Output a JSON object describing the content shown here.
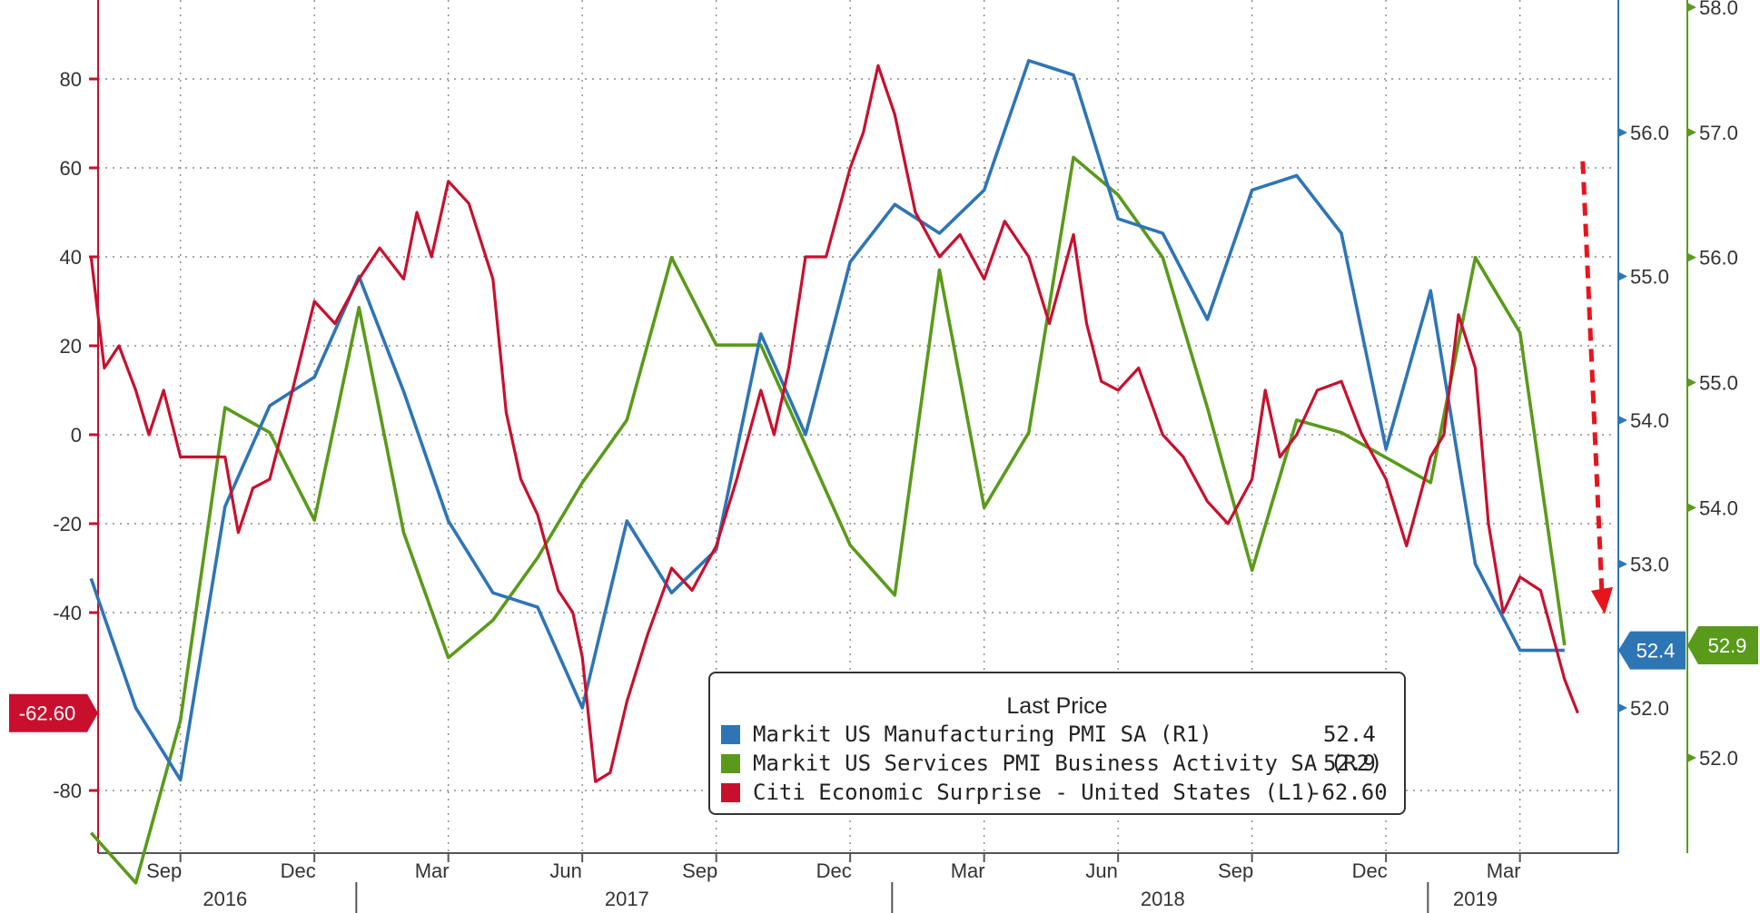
{
  "chart_data": {
    "type": "line",
    "title": "",
    "axes": {
      "x": {
        "month_labels": [
          "Sep",
          "Dec",
          "Mar",
          "Jun",
          "Sep",
          "Dec",
          "Mar",
          "Jun",
          "Sep",
          "Dec",
          "Mar"
        ],
        "month_dates": [
          "2016-09",
          "2016-12",
          "2017-03",
          "2017-06",
          "2017-09",
          "2017-12",
          "2018-03",
          "2018-06",
          "2018-09",
          "2018-12",
          "2019-03"
        ],
        "year_labels": [
          "2016",
          "2017",
          "2018",
          "2019"
        ],
        "year_dates": [
          "2016-10",
          "2017-07",
          "2018-07",
          "2019-02"
        ],
        "range": [
          "2016-07",
          "2019-04"
        ]
      },
      "left_L1": {
        "ticks": [
          "80",
          "60",
          "40",
          "20",
          "0",
          "-20",
          "-40",
          "-80"
        ],
        "tick_values": [
          80,
          60,
          40,
          20,
          0,
          -20,
          -40,
          -80
        ],
        "range": [
          -90,
          95
        ]
      },
      "right_R1": {
        "ticks": [
          "56.0",
          "55.0",
          "54.0",
          "53.0",
          "52.0"
        ],
        "tick_values": [
          56,
          55,
          54,
          53,
          52
        ],
        "range": [
          51.0,
          57.0
        ]
      },
      "right_R2": {
        "ticks": [
          "58.0",
          "57.0",
          "56.0",
          "55.0",
          "54.0",
          "52.0"
        ],
        "tick_values": [
          58,
          57,
          56,
          55,
          54,
          52
        ],
        "range": [
          51.2,
          58.0
        ]
      }
    },
    "grid": true,
    "series": [
      {
        "name": "Markit US Manufacturing PMI SA (R1)",
        "axis": "R1",
        "color": "#2e75b6",
        "last": "52.4",
        "points": [
          [
            "2016-07",
            52.9
          ],
          [
            "2016-08",
            52.0
          ],
          [
            "2016-09",
            51.5
          ],
          [
            "2016-10",
            53.4
          ],
          [
            "2016-11",
            54.1
          ],
          [
            "2016-12",
            54.3
          ],
          [
            "2017-01",
            55.0
          ],
          [
            "2017-02",
            54.2
          ],
          [
            "2017-03",
            53.3
          ],
          [
            "2017-04",
            52.8
          ],
          [
            "2017-05",
            52.7
          ],
          [
            "2017-06",
            52.0
          ],
          [
            "2017-07",
            53.3
          ],
          [
            "2017-08",
            52.8
          ],
          [
            "2017-09",
            53.1
          ],
          [
            "2017-10",
            54.6
          ],
          [
            "2017-11",
            53.9
          ],
          [
            "2017-12",
            55.1
          ],
          [
            "2018-01",
            55.5
          ],
          [
            "2018-02",
            55.3
          ],
          [
            "2018-03",
            55.6
          ],
          [
            "2018-04",
            56.5
          ],
          [
            "2018-05",
            56.4
          ],
          [
            "2018-06",
            55.4
          ],
          [
            "2018-07",
            55.3
          ],
          [
            "2018-08",
            54.7
          ],
          [
            "2018-09",
            55.6
          ],
          [
            "2018-10",
            55.7
          ],
          [
            "2018-11",
            55.3
          ],
          [
            "2018-12",
            53.8
          ],
          [
            "2019-01",
            54.9
          ],
          [
            "2019-02",
            53.0
          ],
          [
            "2019-03",
            52.4
          ],
          [
            "2019-04",
            52.4
          ]
        ]
      },
      {
        "name": "Markit US Services PMI Business Activity SA (R2)",
        "axis": "R2",
        "color": "#5a9a1a",
        "last": "52.9",
        "points": [
          [
            "2016-07",
            51.4
          ],
          [
            "2016-08",
            51.0
          ],
          [
            "2016-09",
            52.3
          ],
          [
            "2016-10",
            54.8
          ],
          [
            "2016-11",
            54.6
          ],
          [
            "2016-12",
            53.9
          ],
          [
            "2017-01",
            55.6
          ],
          [
            "2017-02",
            53.8
          ],
          [
            "2017-03",
            52.8
          ],
          [
            "2017-04",
            53.1
          ],
          [
            "2017-05",
            53.6
          ],
          [
            "2017-06",
            54.2
          ],
          [
            "2017-07",
            54.7
          ],
          [
            "2017-08",
            56.0
          ],
          [
            "2017-09",
            55.3
          ],
          [
            "2017-10",
            55.3
          ],
          [
            "2017-11",
            54.5
          ],
          [
            "2017-12",
            53.7
          ],
          [
            "2018-01",
            53.3
          ],
          [
            "2018-02",
            55.9
          ],
          [
            "2018-03",
            54.0
          ],
          [
            "2018-04",
            54.6
          ],
          [
            "2018-05",
            56.8
          ],
          [
            "2018-06",
            56.5
          ],
          [
            "2018-07",
            56.0
          ],
          [
            "2018-08",
            54.8
          ],
          [
            "2018-09",
            53.5
          ],
          [
            "2018-10",
            54.7
          ],
          [
            "2018-11",
            54.6
          ],
          [
            "2018-12",
            54.4
          ],
          [
            "2019-01",
            54.2
          ],
          [
            "2019-02",
            56.0
          ],
          [
            "2019-03",
            55.4
          ],
          [
            "2019-04",
            52.9
          ]
        ]
      },
      {
        "name": "Citi Economic Surprise - United States (L1)",
        "axis": "L1",
        "color": "#c8102e",
        "last": "-62.60",
        "points": [
          [
            "2016-07-01",
            40
          ],
          [
            "2016-07-10",
            15
          ],
          [
            "2016-07-20",
            20
          ],
          [
            "2016-08-01",
            10
          ],
          [
            "2016-08-10",
            0
          ],
          [
            "2016-08-20",
            10
          ],
          [
            "2016-09-01",
            -5
          ],
          [
            "2016-09-15",
            -5
          ],
          [
            "2016-10-01",
            -5
          ],
          [
            "2016-10-10",
            -22
          ],
          [
            "2016-10-20",
            -12
          ],
          [
            "2016-11-01",
            -10
          ],
          [
            "2016-11-15",
            8
          ],
          [
            "2016-12-01",
            30
          ],
          [
            "2016-12-15",
            25
          ],
          [
            "2017-01-01",
            35
          ],
          [
            "2017-01-15",
            42
          ],
          [
            "2017-02-01",
            35
          ],
          [
            "2017-02-10",
            50
          ],
          [
            "2017-02-20",
            40
          ],
          [
            "2017-03-01",
            57
          ],
          [
            "2017-03-15",
            52
          ],
          [
            "2017-04-01",
            35
          ],
          [
            "2017-04-10",
            5
          ],
          [
            "2017-04-20",
            -10
          ],
          [
            "2017-05-01",
            -18
          ],
          [
            "2017-05-15",
            -35
          ],
          [
            "2017-05-25",
            -40
          ],
          [
            "2017-06-01",
            -50
          ],
          [
            "2017-06-10",
            -78
          ],
          [
            "2017-06-20",
            -76
          ],
          [
            "2017-07-01",
            -60
          ],
          [
            "2017-07-15",
            -45
          ],
          [
            "2017-08-01",
            -30
          ],
          [
            "2017-08-15",
            -35
          ],
          [
            "2017-09-01",
            -25
          ],
          [
            "2017-09-15",
            -10
          ],
          [
            "2017-10-01",
            10
          ],
          [
            "2017-10-10",
            0
          ],
          [
            "2017-10-20",
            15
          ],
          [
            "2017-11-01",
            40
          ],
          [
            "2017-11-15",
            40
          ],
          [
            "2017-12-01",
            60
          ],
          [
            "2017-12-10",
            68
          ],
          [
            "2017-12-20",
            83
          ],
          [
            "2018-01-01",
            72
          ],
          [
            "2018-01-15",
            50
          ],
          [
            "2018-02-01",
            40
          ],
          [
            "2018-02-15",
            45
          ],
          [
            "2018-03-01",
            35
          ],
          [
            "2018-03-15",
            48
          ],
          [
            "2018-04-01",
            40
          ],
          [
            "2018-04-15",
            25
          ],
          [
            "2018-05-01",
            45
          ],
          [
            "2018-05-10",
            25
          ],
          [
            "2018-05-20",
            12
          ],
          [
            "2018-06-01",
            10
          ],
          [
            "2018-06-15",
            15
          ],
          [
            "2018-07-01",
            0
          ],
          [
            "2018-07-15",
            -5
          ],
          [
            "2018-08-01",
            -15
          ],
          [
            "2018-08-15",
            -20
          ],
          [
            "2018-09-01",
            -10
          ],
          [
            "2018-09-10",
            10
          ],
          [
            "2018-09-20",
            -5
          ],
          [
            "2018-10-01",
            0
          ],
          [
            "2018-10-15",
            10
          ],
          [
            "2018-11-01",
            12
          ],
          [
            "2018-11-15",
            0
          ],
          [
            "2018-12-01",
            -10
          ],
          [
            "2018-12-15",
            -25
          ],
          [
            "2019-01-01",
            -5
          ],
          [
            "2019-01-10",
            0
          ],
          [
            "2019-01-20",
            27
          ],
          [
            "2019-02-01",
            15
          ],
          [
            "2019-02-10",
            -20
          ],
          [
            "2019-02-20",
            -40
          ],
          [
            "2019-03-01",
            -32
          ],
          [
            "2019-03-15",
            -35
          ],
          [
            "2019-04-01",
            -55
          ],
          [
            "2019-04-10",
            -62.6
          ]
        ]
      }
    ],
    "legend": {
      "title": "Last Price",
      "placement": "bottom-center",
      "entries": [
        {
          "name": "Markit US Manufacturing PMI SA  (R1)",
          "value": "52.4",
          "color": "#2e75b6"
        },
        {
          "name": "Markit US Services PMI Business Activity SA  (R2)",
          "value": "52.9",
          "color": "#5a9a1a"
        },
        {
          "name": "Citi Economic Surprise - United States  (L1)",
          "value": "-62.60",
          "color": "#c8102e"
        }
      ]
    },
    "annotations": [
      {
        "type": "dashed-arrow",
        "color": "#e8141c",
        "direction": "down",
        "from": [
          "2019-04",
          55.8
        ],
        "to": [
          "2019-05",
          52.6
        ],
        "axis": "R1"
      }
    ]
  }
}
